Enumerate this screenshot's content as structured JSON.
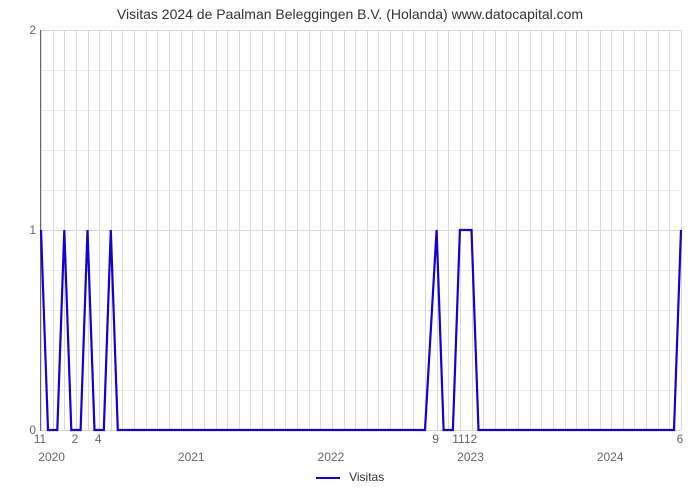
{
  "title": "Visitas 2024 de Paalman Beleggingen B.V. (Holanda) www.datocapital.com",
  "chart": {
    "type": "line",
    "line_color": "#1800cf",
    "line_width": 2.2,
    "background_color": "#ffffff",
    "grid_color": "#d9d9d9",
    "border_color": "#666666",
    "title_fontsize": 14,
    "tick_fontsize": 12,
    "x_domain": [
      0,
      55
    ],
    "y_domain": [
      0,
      2
    ],
    "y_ticks": [
      0,
      1,
      2
    ],
    "y_minor_count_between_majors": 4,
    "x_major_years": [
      {
        "label": "2020",
        "x": 1
      },
      {
        "label": "2021",
        "x": 13
      },
      {
        "label": "2022",
        "x": 25
      },
      {
        "label": "2023",
        "x": 37
      },
      {
        "label": "2024",
        "x": 49
      }
    ],
    "x_month_labels": [
      {
        "label": "11",
        "x": 0
      },
      {
        "label": "2",
        "x": 3
      },
      {
        "label": "4",
        "x": 5
      },
      {
        "label": "9",
        "x": 34
      },
      {
        "label": "1112",
        "x": 36.5
      },
      {
        "label": "6",
        "x": 55
      }
    ],
    "series": {
      "name": "Visitas",
      "points": [
        [
          0,
          1
        ],
        [
          0.6,
          0
        ],
        [
          1.4,
          0
        ],
        [
          2,
          1
        ],
        [
          2.6,
          0
        ],
        [
          3.4,
          0
        ],
        [
          4,
          1
        ],
        [
          4.6,
          0
        ],
        [
          5.4,
          0
        ],
        [
          6,
          1
        ],
        [
          6.6,
          0
        ],
        [
          33,
          0
        ],
        [
          34,
          1
        ],
        [
          34.6,
          0
        ],
        [
          35.4,
          0
        ],
        [
          36,
          1
        ],
        [
          37,
          1
        ],
        [
          37.6,
          0
        ],
        [
          54.4,
          0
        ],
        [
          55,
          1
        ]
      ]
    },
    "legend": {
      "label": "Visitas",
      "swatch_color": "#1800cf"
    }
  }
}
